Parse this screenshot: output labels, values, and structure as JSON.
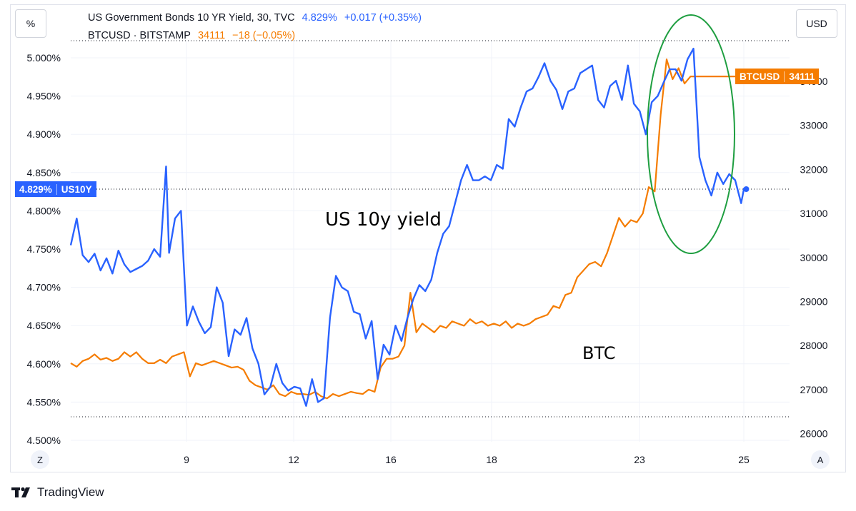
{
  "header": {
    "percent_button": "%",
    "currency_button": "USD",
    "series1": {
      "name": "US Government Bonds 10 YR Yield, 30, TVC",
      "value": "4.829%",
      "change": "+0.017 (+0.35%)",
      "color": "#2962ff"
    },
    "series2": {
      "name": "BTCUSD · BITSTAMP",
      "value": "34111",
      "change": "−18 (−0.05%)",
      "color": "#f57c00"
    }
  },
  "tags": {
    "yield_value": "4.829%",
    "yield_symbol": "US10Y",
    "btc_symbol": "BTCUSD",
    "btc_value": "34111"
  },
  "annotations": {
    "yield_label": "US 10y yield",
    "btc_label": "BTC"
  },
  "bottom": {
    "left_button": "Z",
    "right_button": "A"
  },
  "brand": "TradingView",
  "chart_data": {
    "type": "line",
    "x_tick_labels": [
      "9",
      "12",
      "16",
      "18",
      "23",
      "25"
    ],
    "left_axis": {
      "ticks": [
        "5.000%",
        "4.950%",
        "4.900%",
        "4.850%",
        "4.800%",
        "4.750%",
        "4.700%",
        "4.650%",
        "4.600%",
        "4.550%",
        "4.500%"
      ],
      "range": [
        4.5,
        5.0
      ]
    },
    "right_axis": {
      "ticks": [
        "34000",
        "33000",
        "32000",
        "31000",
        "30000",
        "29000",
        "28000",
        "27000",
        "26000"
      ],
      "range": [
        26000,
        34000
      ]
    },
    "series": [
      {
        "name": "US10Y",
        "axis": "left",
        "color": "#2962ff",
        "x": [
          0,
          2,
          4,
          6,
          8,
          10,
          12,
          14,
          16,
          18,
          20,
          22,
          24,
          26,
          28,
          30,
          32,
          33,
          35,
          37,
          39,
          41,
          43,
          45,
          47,
          49,
          51,
          53,
          55,
          57,
          59,
          61,
          63,
          65,
          67,
          69,
          71,
          73,
          75,
          77,
          79,
          81,
          83,
          85,
          87,
          89,
          91,
          93,
          95,
          97,
          99,
          101,
          103,
          105,
          107,
          109,
          111,
          113,
          115,
          117,
          119,
          121,
          123,
          125,
          127,
          129,
          131,
          133,
          135,
          137,
          139,
          141,
          143,
          145,
          147,
          149,
          151,
          153,
          155,
          157,
          159,
          161,
          163,
          165,
          167
        ],
        "values": [
          4.755,
          4.79,
          4.742,
          4.733,
          4.744,
          4.722,
          4.738,
          4.718,
          4.748,
          4.73,
          4.72,
          4.724,
          4.728,
          4.735,
          4.75,
          4.74,
          4.858,
          4.745,
          4.79,
          4.8,
          4.65,
          4.675,
          4.655,
          4.64,
          4.648,
          4.7,
          4.68,
          4.61,
          4.645,
          4.638,
          4.66,
          4.62,
          4.6,
          4.56,
          4.57,
          4.6,
          4.575,
          4.565,
          4.57,
          4.568,
          4.545,
          4.58,
          4.55,
          4.555,
          4.66,
          4.715,
          4.7,
          4.695,
          4.668,
          4.665,
          4.633,
          4.656,
          4.58,
          4.625,
          4.612,
          4.65,
          4.63,
          4.66,
          4.685,
          4.703,
          4.695,
          4.71,
          4.745,
          4.77,
          4.78,
          4.81,
          4.84,
          4.86,
          4.84,
          4.84,
          4.845,
          4.84,
          4.86,
          4.855,
          4.92,
          4.91,
          4.935,
          4.956,
          4.96,
          4.975,
          4.993,
          4.97,
          4.958,
          4.933,
          4.956
        ],
        "x_tail": [
          169,
          171,
          173,
          175,
          177,
          179,
          181,
          183,
          185,
          187,
          189,
          191,
          193,
          195,
          197,
          199,
          201,
          203,
          205,
          207,
          209,
          211,
          213,
          215
        ],
        "values_tail": [
          4.96,
          4.98,
          4.985,
          4.99,
          4.945,
          4.935,
          4.963,
          4.97,
          4.945,
          4.99,
          4.94,
          4.93,
          4.9,
          4.942,
          4.95,
          4.968,
          4.985,
          4.985,
          4.97,
          4.998,
          5.012,
          4.87,
          4.84,
          4.82
        ],
        "x_end": [
          217,
          219,
          221,
          223,
          225,
          226
        ],
        "values_end": [
          4.85,
          4.835,
          4.848,
          4.84,
          4.81,
          4.83
        ]
      },
      {
        "name": "BTCUSD",
        "axis": "right",
        "color": "#f57c00",
        "x": [
          0,
          2,
          4,
          6,
          8,
          10,
          12,
          14,
          16,
          18,
          20,
          22,
          24,
          26,
          28,
          30,
          32,
          34,
          36,
          38,
          40,
          42,
          44,
          46,
          48,
          50,
          52,
          54,
          56,
          58,
          60,
          62,
          64,
          66,
          68,
          70,
          72,
          74,
          76,
          78,
          80,
          82,
          84,
          86,
          88,
          90,
          92,
          94,
          96,
          98,
          100,
          102,
          104,
          106,
          108,
          110,
          112,
          114,
          116,
          118,
          120,
          122,
          124,
          126,
          128,
          130,
          132,
          134,
          136,
          138,
          140,
          142,
          144,
          146,
          148,
          150,
          152,
          154,
          156,
          158,
          160,
          162,
          164,
          166,
          168,
          170,
          172,
          174,
          176,
          178,
          180,
          182,
          184,
          186,
          188,
          190,
          192,
          194,
          196,
          198,
          200,
          202,
          204,
          206,
          208,
          210,
          212,
          214,
          216,
          218,
          220,
          222,
          224,
          226
        ],
        "values": [
          27600,
          27520,
          27650,
          27700,
          27800,
          27680,
          27720,
          27650,
          27700,
          27850,
          27750,
          27850,
          27700,
          27600,
          27600,
          27680,
          27600,
          27750,
          27800,
          27850,
          27300,
          27600,
          27550,
          27600,
          27650,
          27600,
          27550,
          27500,
          27520,
          27450,
          27200,
          27100,
          27050,
          27000,
          27100,
          26900,
          26850,
          26950,
          26900,
          26900,
          26880,
          26950,
          26850,
          26800,
          26900,
          26850,
          26900,
          26950,
          26920,
          26900,
          27000,
          26950,
          27500,
          27700,
          27700,
          27750,
          28000,
          29200,
          28300,
          28500,
          28400,
          28300,
          28450,
          28400,
          28550,
          28500,
          28450,
          28600,
          28500,
          28550,
          28450,
          28500,
          28450,
          28550,
          28400,
          28500,
          28450,
          28500,
          28600,
          28650,
          28700,
          28900,
          28850,
          29150,
          29200,
          29550,
          29700,
          29850,
          29900,
          29800,
          30100,
          30500,
          30900,
          30700,
          30850,
          30800,
          31000,
          31600,
          31500,
          33250,
          34500,
          34050,
          34300,
          33950,
          34111,
          34111,
          34111,
          34111,
          34111,
          34111,
          34111,
          34111,
          34111,
          34111
        ]
      }
    ],
    "annotation_texts": [
      "US 10y yield",
      "BTC"
    ]
  }
}
